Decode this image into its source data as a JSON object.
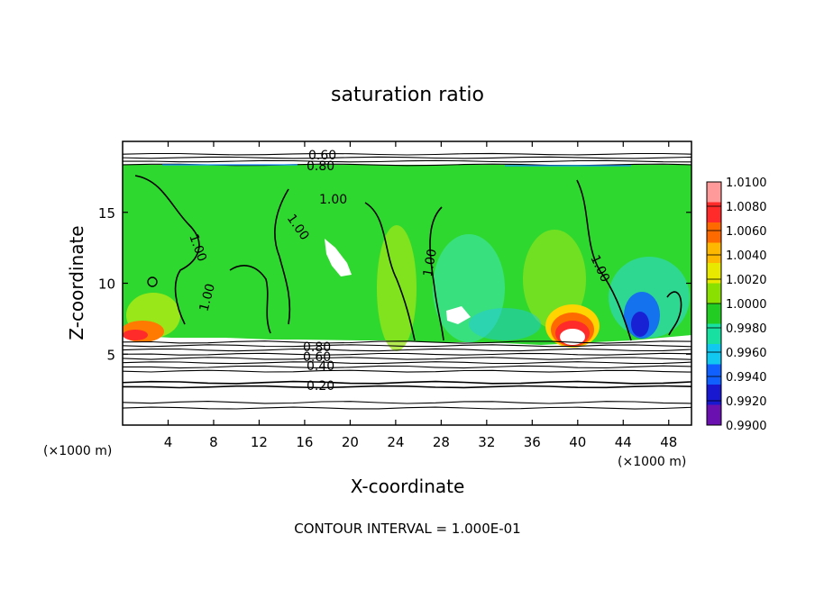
{
  "chart_data": {
    "type": "heatmap",
    "title": "saturation ratio",
    "xlabel": "X-coordinate",
    "ylabel": "Z-coordinate",
    "x_unit_label": "(×1000 m)",
    "y_unit_label": "(×1000 m)",
    "xlim": [
      0,
      50
    ],
    "ylim": [
      0,
      20
    ],
    "x_ticks": [
      "4",
      "8",
      "12",
      "16",
      "20",
      "24",
      "28",
      "32",
      "36",
      "40",
      "44",
      "48"
    ],
    "y_ticks": [
      "5",
      "10",
      "15"
    ],
    "footnote": "CONTOUR INTERVAL = 1.000E-01",
    "colorbar": {
      "min": 0.99,
      "max": 1.01,
      "labels": [
        "1.0100",
        "1.0080",
        "1.0060",
        "1.0040",
        "1.0020",
        "1.0000",
        "0.9980",
        "0.9960",
        "0.9940",
        "0.9920",
        "0.9900"
      ],
      "colors": [
        "#ff9a9a",
        "#ff2a2a",
        "#ff6a00",
        "#ffb800",
        "#e8e800",
        "#8ae000",
        "#22cc22",
        "#18e0a0",
        "#10c8f0",
        "#1060ff",
        "#1818d0",
        "#6a10b0"
      ]
    },
    "contour_labels": [
      "0.60",
      "0.80",
      "1.00",
      "1.00",
      "1.00",
      "1.00",
      "1.00",
      "1.00",
      "0.80",
      "0.60",
      "0.40",
      "0.20"
    ],
    "contour_levels": [
      0.2,
      0.4,
      0.6,
      0.8,
      1.0
    ],
    "fill_region_z": [
      6,
      18
    ]
  }
}
